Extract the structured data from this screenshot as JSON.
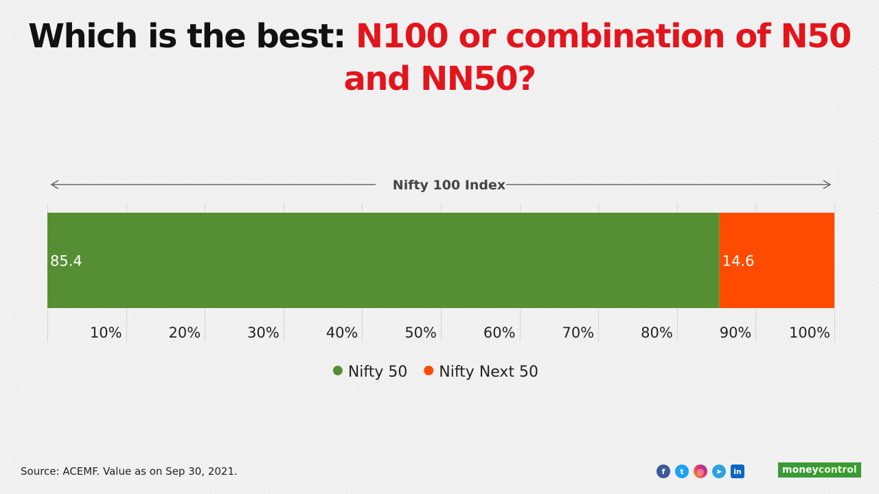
{
  "title": {
    "part1": "Which is the best: ",
    "part2": "N100 or combination of N50 and NN50?"
  },
  "colors": {
    "nifty50": "#568f33",
    "niftynext50": "#ff4b00",
    "title_highlight": "#e3151c"
  },
  "chart_data": {
    "type": "bar",
    "orientation": "horizontal-stacked",
    "span_label": "Nifty 100 Index",
    "categories": [
      "Nifty 100 Index"
    ],
    "series": [
      {
        "name": "Nifty 50",
        "values": [
          85.4
        ],
        "color": "#568f33"
      },
      {
        "name": "Nifty Next 50",
        "values": [
          14.6
        ],
        "color": "#ff4b00"
      }
    ],
    "xlim": [
      0,
      100
    ],
    "xticks": [
      "10%",
      "20%",
      "30%",
      "40%",
      "50%",
      "60%",
      "70%",
      "80%",
      "90%",
      "100%"
    ],
    "legend": "bottom-center",
    "grid": true
  },
  "footer": {
    "source": "Source: ACEMF. Value as on Sep 30, 2021.",
    "social_icons": [
      "facebook-icon",
      "twitter-icon",
      "instagram-icon",
      "telegram-icon",
      "linkedin-icon"
    ],
    "social_glyphs": [
      "f",
      "t",
      "◎",
      "➤",
      "in"
    ],
    "brand_part1": "money",
    "brand_part2": "control"
  }
}
